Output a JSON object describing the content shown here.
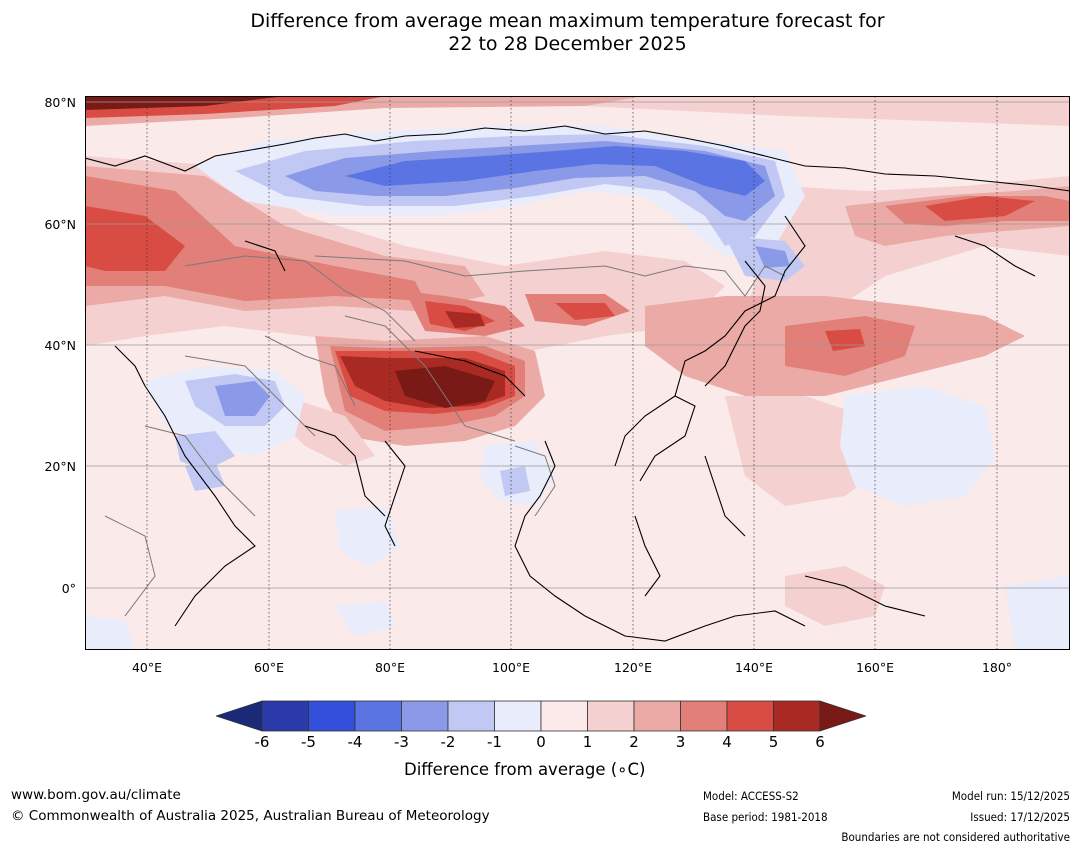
{
  "title": {
    "line1": "Difference from average mean maximum temperature forecast for",
    "line2": "22 to 28 December 2025"
  },
  "map": {
    "lat_labels": [
      "80°N",
      "60°N",
      "40°N",
      "20°N",
      "0°"
    ],
    "lon_labels": [
      "40°E",
      "60°E",
      "80°E",
      "100°E",
      "120°E",
      "140°E",
      "160°E",
      "180°"
    ],
    "lat_range": [
      -10,
      80
    ],
    "lon_range": [
      30,
      190
    ],
    "background_color": "#fbeaea"
  },
  "colorbar": {
    "title": "Difference from average (∘C)",
    "ticks": [
      "-6",
      "-5",
      "-4",
      "-3",
      "-2",
      "-1",
      "0",
      "1",
      "2",
      "3",
      "4",
      "5",
      "6"
    ],
    "colors": {
      "below": "#1a2a78",
      "bins": [
        "#2a3aa8",
        "#3350dc",
        "#5a75e3",
        "#8a9ae8",
        "#c0c8f3",
        "#e8ecfb",
        "#fce9e9",
        "#f5d0d0",
        "#ebaaa6",
        "#e27f78",
        "#d94c44",
        "#a82a22"
      ],
      "above": "#7a1a16"
    }
  },
  "footer": {
    "website": "www.bom.gov.au/climate",
    "copyright": "© Commonwealth of Australia 2025, Australian Bureau of Meteorology",
    "model": "Model: ACCESS-S2",
    "base_period": "Base period: 1981-2018",
    "model_run": "Model run: 15/12/2025",
    "issued": "Issued: 17/12/2025",
    "disclaimer": "Boundaries are not considered authoritative"
  }
}
